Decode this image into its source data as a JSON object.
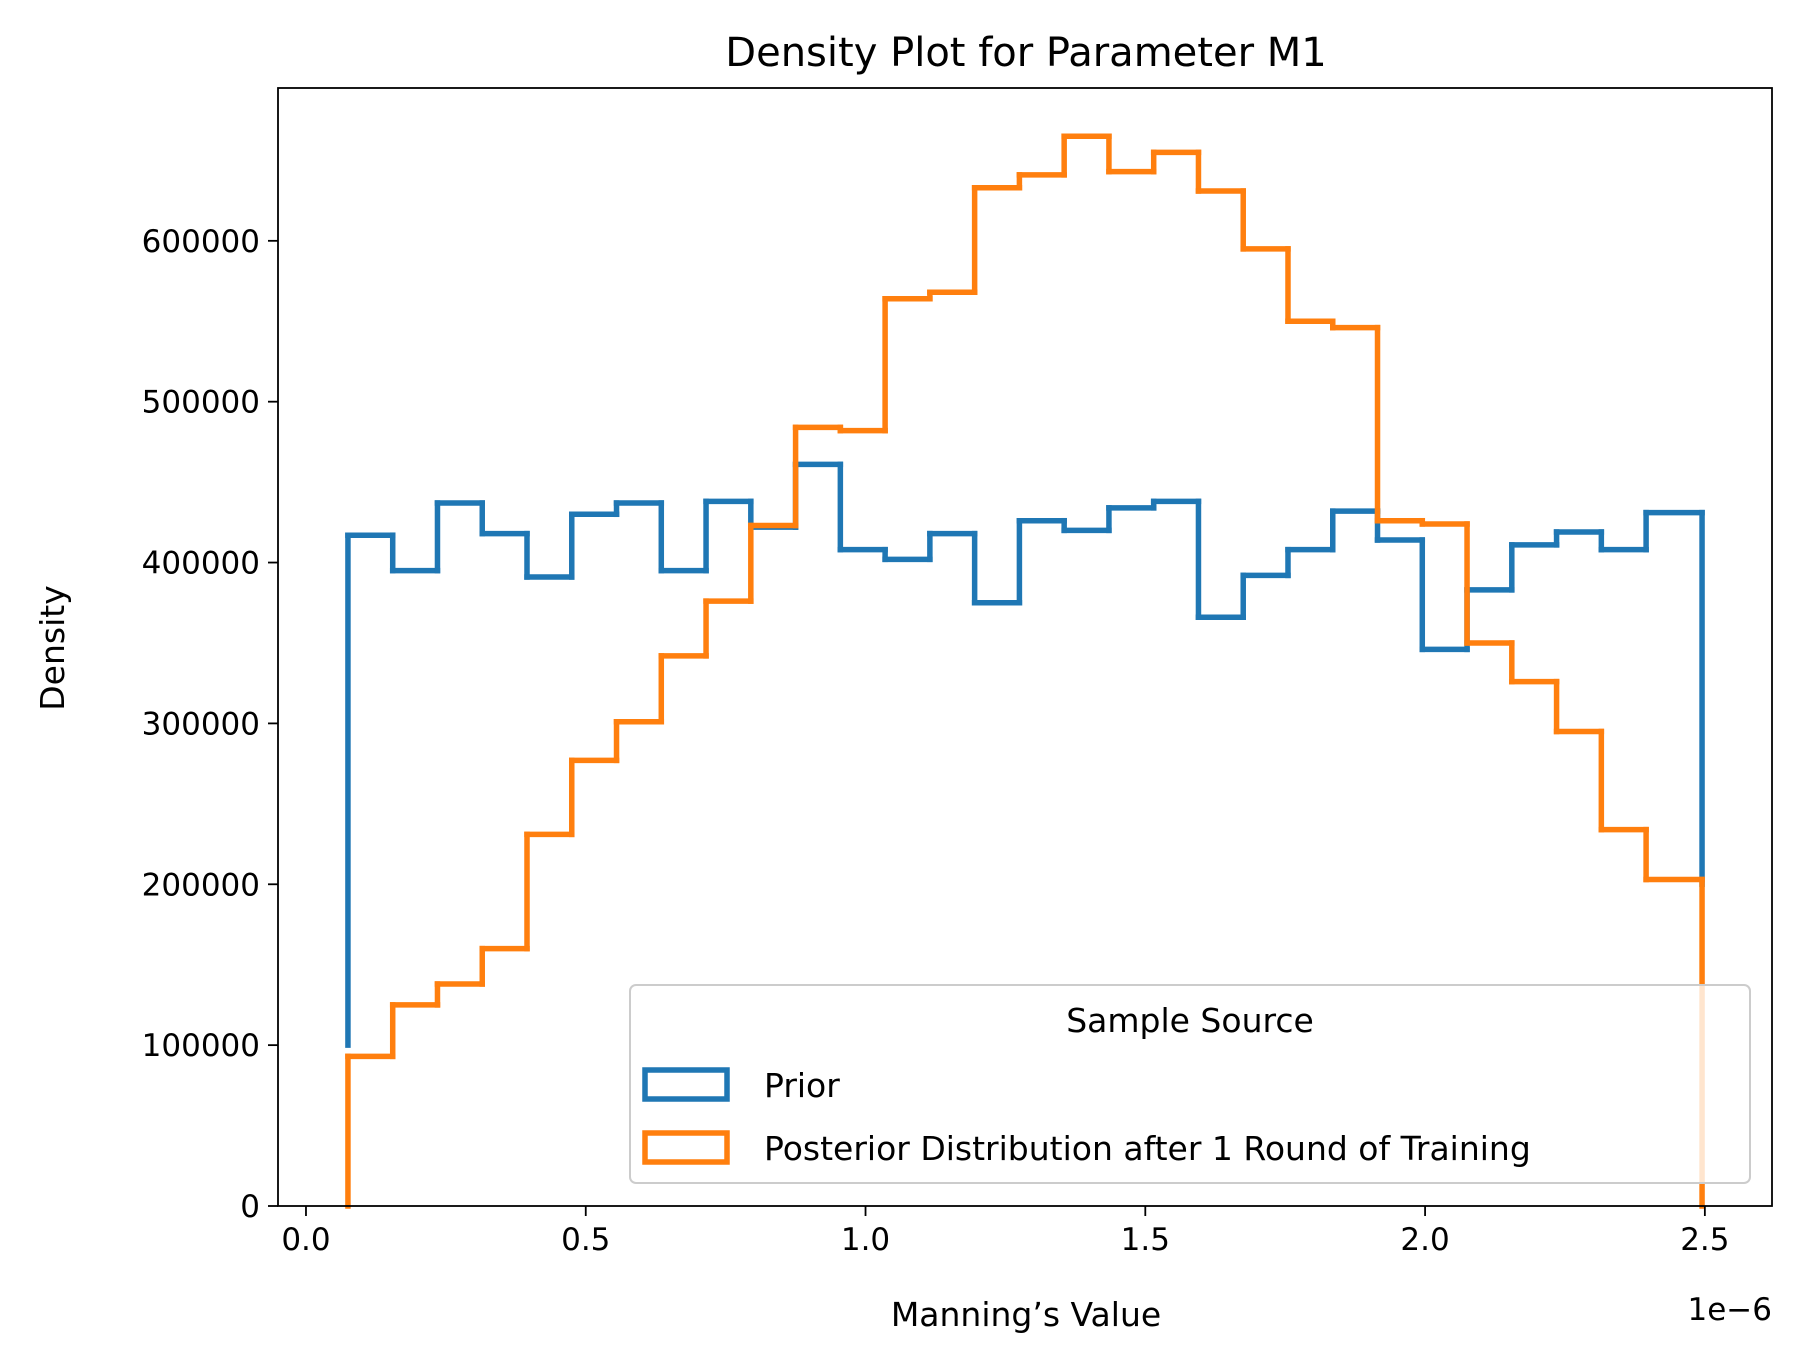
{
  "chart_data": {
    "type": "histogram-step",
    "title": "Density Plot for Parameter M1",
    "xlabel": "Manning’s Value",
    "ylabel": "Density",
    "x_offset_label": "1e−6",
    "xlim": [
      -0.05,
      2.62
    ],
    "ylim": [
      0,
      695000
    ],
    "xticks": [
      0.0,
      0.5,
      1.0,
      1.5,
      2.0,
      2.5
    ],
    "xtick_labels": [
      "0.0",
      "0.5",
      "1.0",
      "1.5",
      "2.0",
      "2.5"
    ],
    "yticks": [
      0,
      100000,
      200000,
      300000,
      400000,
      500000,
      600000
    ],
    "ytick_labels": [
      "0",
      "100000",
      "200000",
      "300000",
      "400000",
      "500000",
      "600000"
    ],
    "legend": {
      "title": "Sample Source",
      "position": "lower right"
    },
    "series": [
      {
        "name": "Prior",
        "color": "#1f77b4",
        "bin_edges": [
          0.075,
          0.155,
          0.235,
          0.315,
          0.395,
          0.475,
          0.555,
          0.635,
          0.715,
          0.795,
          0.875,
          0.955,
          1.035,
          1.115,
          1.195,
          1.275,
          1.355,
          1.435,
          1.515,
          1.595,
          1.675,
          1.755,
          1.835,
          1.915,
          1.995,
          2.075,
          2.155,
          2.235,
          2.315,
          2.395,
          2.495
        ],
        "values": [
          417000,
          395000,
          437000,
          418000,
          391000,
          430000,
          437000,
          395000,
          438000,
          422000,
          461000,
          408000,
          402000,
          418000,
          375000,
          426000,
          420000,
          434000,
          438000,
          366000,
          392000,
          408000,
          432000,
          414000,
          346000,
          383000,
          411000,
          419000,
          408000,
          431000
        ],
        "end_value": 200000
      },
      {
        "name": "Posterior Distribution after 1 Round of Training",
        "color": "#ff7f0e",
        "bin_edges": [
          0.075,
          0.155,
          0.235,
          0.315,
          0.395,
          0.475,
          0.555,
          0.635,
          0.715,
          0.795,
          0.875,
          0.955,
          1.035,
          1.115,
          1.195,
          1.275,
          1.355,
          1.435,
          1.515,
          1.595,
          1.675,
          1.755,
          1.835,
          1.915,
          1.995,
          2.075,
          2.155,
          2.235,
          2.315,
          2.395,
          2.495
        ],
        "values": [
          93000,
          125000,
          138000,
          160000,
          231000,
          277000,
          301000,
          342000,
          376000,
          423000,
          484000,
          482000,
          564000,
          568000,
          633000,
          641000,
          665000,
          643000,
          655000,
          631000,
          595000,
          550000,
          546000,
          426000,
          424000,
          350000,
          326000,
          295000,
          234000,
          203000
        ],
        "end_value": 0
      }
    ]
  }
}
